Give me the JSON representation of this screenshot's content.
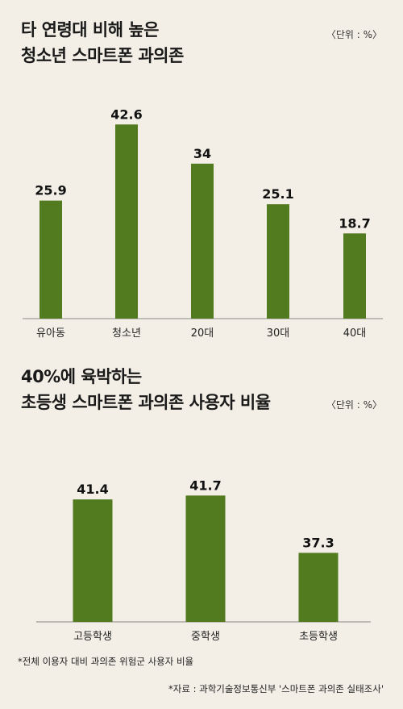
{
  "chart1": {
    "title_line1": "타 연령대 비해 높은",
    "title_line2": "청소년 스마트폰 과의존",
    "unit": "〈단위 : %〉"
  },
  "chart2": {
    "title_line1": "40%에 육박하는",
    "title_line2": "초등생 스마트폰 과의존 사용자 비율",
    "unit": "〈단위 : %〉"
  },
  "footnote": "*전체 이용자 대비 과의존 위험군 사용자 비율",
  "source": "*자료 : 과학기술정보통신부 '스마트폰 과의존 실태조사'",
  "colors": {
    "bar": "#527a1e",
    "background": "#f3efe6",
    "axis": "#888888"
  },
  "chart_data": [
    {
      "type": "bar",
      "title": "타 연령대 비해 높은 청소년 스마트폰 과의존",
      "categories": [
        "유아동",
        "청소년",
        "20대",
        "30대",
        "40대"
      ],
      "values": [
        25.9,
        42.6,
        34,
        25.1,
        18.7
      ],
      "value_labels": [
        "25.9",
        "42.6",
        "34",
        "25.1",
        "18.7"
      ],
      "unit": "%",
      "ylim": [
        0,
        43
      ],
      "grid": false
    },
    {
      "type": "bar",
      "title": "40%에 육박하는 초등생 스마트폰 과의존 사용자 비율",
      "categories": [
        "고등학생",
        "중학생",
        "초등학생"
      ],
      "values": [
        41.4,
        41.7,
        37.3
      ],
      "value_labels": [
        "41.4",
        "41.7",
        "37.3"
      ],
      "unit": "%",
      "ybase": 32,
      "ylim": [
        32,
        42
      ],
      "grid": false
    }
  ]
}
